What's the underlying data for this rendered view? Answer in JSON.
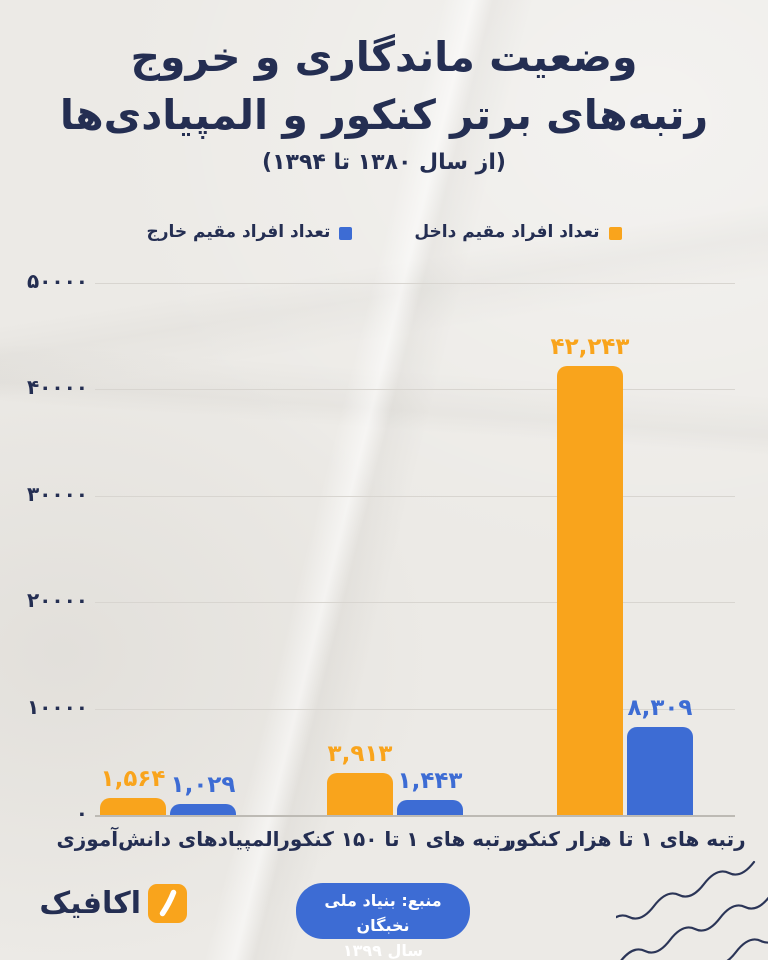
{
  "title": {
    "line1": "وضعیت ماندگاری و خروج",
    "line2": "رتبه‌های برتر کنکور و المپیادی‌ها",
    "subtitle": "(از سال ۱۳۸۰ تا ۱۳۹۴)"
  },
  "legend": {
    "items": [
      {
        "label": "تعداد افراد مقیم داخل",
        "color": "#F9A41C"
      },
      {
        "label": "تعداد افراد مقیم خارج",
        "color": "#3D6CD4"
      }
    ]
  },
  "chart_data": {
    "type": "bar",
    "categories": [
      "رتبه های ۱ تا هزار کنکور",
      "رتبه های ۱ تا ۱۵۰ کنکور",
      "المپیادهای دانش‌آموزی"
    ],
    "series": [
      {
        "name": "تعداد افراد مقیم داخل",
        "color": "#F9A41C",
        "values": [
          42243,
          3913,
          1564
        ],
        "value_labels": [
          "۴۲,۲۴۳",
          "۳,۹۱۳",
          "۱,۵۶۴"
        ]
      },
      {
        "name": "تعداد افراد مقیم خارج",
        "color": "#3D6CD4",
        "values": [
          8309,
          1443,
          1029
        ],
        "value_labels": [
          "۸,۳۰۹",
          "۱,۴۴۳",
          "۱,۰۲۹"
        ]
      }
    ],
    "ylim": [
      0,
      50000
    ],
    "yticks": {
      "values": [
        50000,
        40000,
        30000,
        20000,
        10000,
        0
      ],
      "labels": [
        "۵۰۰۰۰",
        "۴۰۰۰۰",
        "۳۰۰۰۰",
        "۲۰۰۰۰",
        "۱۰۰۰۰",
        "۰"
      ]
    },
    "grid": true,
    "legend_position": "top",
    "direction": "rtl"
  },
  "source": {
    "line1": "منبع: بنیاد ملی نخبگان",
    "line2": "سال ۱۳۹۹",
    "bg_color": "#3D6CD4"
  },
  "logo": {
    "text": "اکافیک",
    "icon": "comma-icon",
    "icon_color": "#F9A41C"
  },
  "colors": {
    "background": "#ECEAE6",
    "title": "#242E52",
    "grid": "#d8d5d0"
  }
}
